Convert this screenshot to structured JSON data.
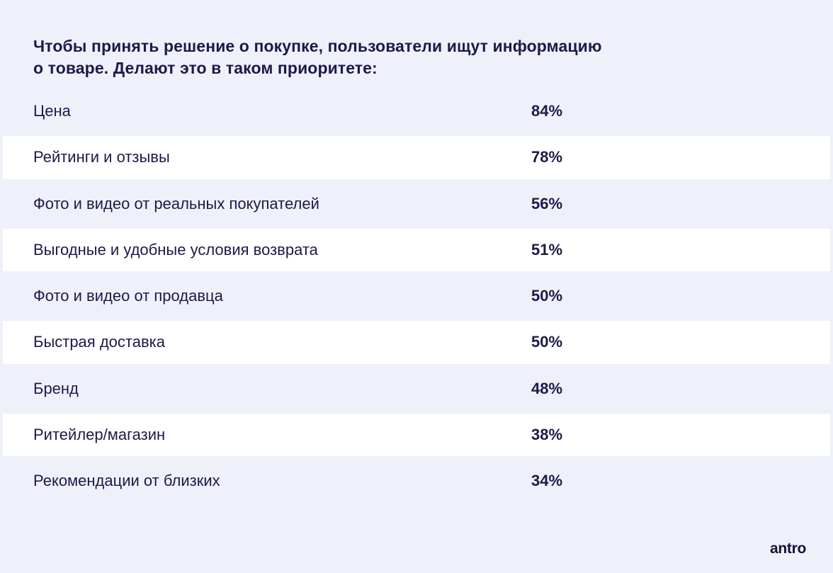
{
  "colors": {
    "background": "#eef1fa",
    "stripe": "#ffffff",
    "text": "#1b1b47",
    "logo": "#14113a"
  },
  "title": {
    "lines": [
      "Чтобы принять решение о покупке, пользователи ищут информацию",
      "о товаре. Делают это в таком приоритете:"
    ]
  },
  "rows": [
    {
      "label": "Цена",
      "value": "84%"
    },
    {
      "label": "Рейтинги и отзывы",
      "value": "78%"
    },
    {
      "label": "Фото и видео от реальных покупателей",
      "value": "56%"
    },
    {
      "label": "Выгодные и удобные условия возврата",
      "value": "51%"
    },
    {
      "label": "Фото и видео от продавца",
      "value": "50%"
    },
    {
      "label": "Быстрая доставка",
      "value": "50%"
    },
    {
      "label": "Бренд",
      "value": "48%"
    },
    {
      "label": "Ритейлер/магазин",
      "value": "38%"
    },
    {
      "label": "Рекомендации от близких",
      "value": "34%"
    }
  ],
  "logo": {
    "text": "antro"
  },
  "chart_data": {
    "type": "table",
    "title": "Чтобы принять решение о покупке, пользователи ищут информацию о товаре. Делают это в таком приоритете:",
    "categories": [
      "Цена",
      "Рейтинги и отзывы",
      "Фото и видео от реальных покупателей",
      "Выгодные и удобные условия возврата",
      "Фото и видео от продавца",
      "Быстрая доставка",
      "Бренд",
      "Ритейлер/магазин",
      "Рекомендации от близких"
    ],
    "values": [
      84,
      78,
      56,
      51,
      50,
      50,
      48,
      38,
      34
    ],
    "unit": "%",
    "value_label_format": "NN%",
    "legend": false,
    "grid": false
  }
}
